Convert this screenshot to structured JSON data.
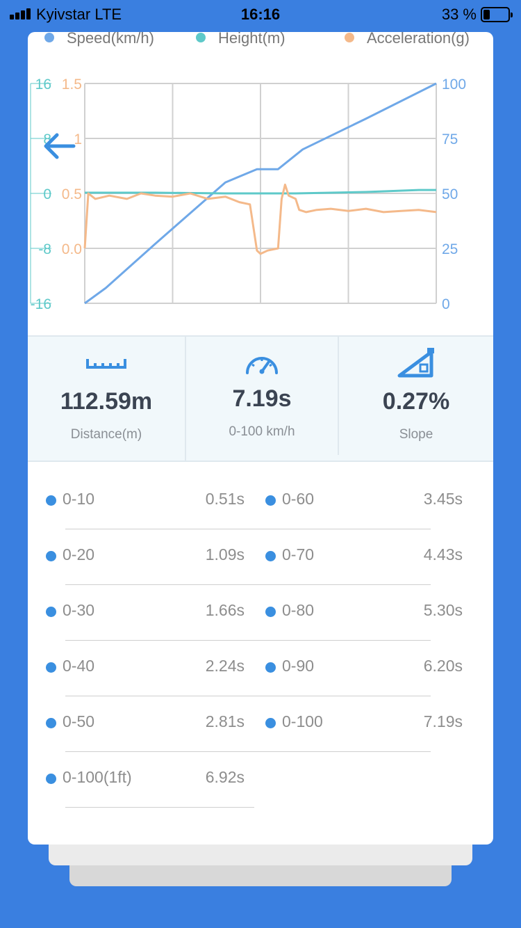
{
  "status_bar": {
    "carrier": "Kyivstar LTE",
    "time": "16:16",
    "battery": "33 %"
  },
  "legend": [
    {
      "name": "Speed(km/h)",
      "color": "#6fa8e8"
    },
    {
      "name": "Height(m)",
      "color": "#5ec9c9"
    },
    {
      "name": "Acceleration(g)",
      "color": "#f4b98a"
    }
  ],
  "chart_data": {
    "type": "line",
    "y_axes": {
      "height_left": {
        "ticks": [
          "16",
          "8",
          "0",
          "-8",
          "-16"
        ],
        "range": [
          -16,
          16
        ],
        "color": "#5ec9c9"
      },
      "acceleration_left": {
        "ticks": [
          "1.5",
          "1",
          "0.5",
          "0.0"
        ],
        "range": [
          -0.5,
          1.5
        ],
        "color": "#f4b98a"
      },
      "speed_right": {
        "ticks": [
          "100",
          "75",
          "50",
          "25",
          "0"
        ],
        "range": [
          0,
          100
        ],
        "color": "#6fa8e8"
      }
    },
    "x_range": [
      0,
      1
    ],
    "grid": true,
    "series": [
      {
        "name": "Speed(km/h)",
        "color": "#6fa8e8",
        "x": [
          0,
          0.06,
          0.2,
          0.4,
          0.49,
          0.55,
          0.62,
          0.8,
          1.0
        ],
        "y": [
          0,
          7,
          27,
          55,
          61,
          61,
          70,
          84,
          100
        ]
      },
      {
        "name": "Height(m)",
        "color": "#5ec9c9",
        "x": [
          0,
          0.2,
          0.4,
          0.6,
          0.8,
          0.95,
          1.0
        ],
        "y": [
          0.1,
          0.1,
          0.0,
          0.0,
          0.2,
          0.5,
          0.5
        ]
      },
      {
        "name": "Acceleration(g)",
        "color": "#f4b98a",
        "x": [
          0,
          0.01,
          0.03,
          0.07,
          0.12,
          0.16,
          0.2,
          0.25,
          0.3,
          0.35,
          0.4,
          0.44,
          0.47,
          0.49,
          0.5,
          0.52,
          0.55,
          0.56,
          0.57,
          0.58,
          0.6,
          0.61,
          0.63,
          0.66,
          0.7,
          0.75,
          0.8,
          0.85,
          0.9,
          0.95,
          1.0
        ],
        "y": [
          0.0,
          0.5,
          0.45,
          0.48,
          0.45,
          0.5,
          0.48,
          0.47,
          0.5,
          0.45,
          0.47,
          0.42,
          0.4,
          -0.02,
          -0.05,
          -0.02,
          0.0,
          0.45,
          0.58,
          0.48,
          0.45,
          0.35,
          0.33,
          0.35,
          0.36,
          0.34,
          0.36,
          0.33,
          0.34,
          0.35,
          0.33
        ]
      }
    ]
  },
  "stats": [
    {
      "icon": "ruler-icon",
      "value": "112.59m",
      "label": "Distance(m)"
    },
    {
      "icon": "speedometer-icon",
      "value": "7.19s",
      "label": "0-100 km/h"
    },
    {
      "icon": "slope-icon",
      "value": "0.27%",
      "label": "Slope"
    }
  ],
  "splits_left": [
    {
      "label": "0-10",
      "value": "0.51s"
    },
    {
      "label": "0-20",
      "value": "1.09s"
    },
    {
      "label": "0-30",
      "value": "1.66s"
    },
    {
      "label": "0-40",
      "value": "2.24s"
    },
    {
      "label": "0-50",
      "value": "2.81s"
    },
    {
      "label": "0-100(1ft)",
      "value": "6.92s"
    }
  ],
  "splits_right": [
    {
      "label": "0-60",
      "value": "3.45s"
    },
    {
      "label": "0-70",
      "value": "4.43s"
    },
    {
      "label": "0-80",
      "value": "5.30s"
    },
    {
      "label": "0-90",
      "value": "6.20s"
    },
    {
      "label": "0-100",
      "value": "7.19s"
    }
  ]
}
